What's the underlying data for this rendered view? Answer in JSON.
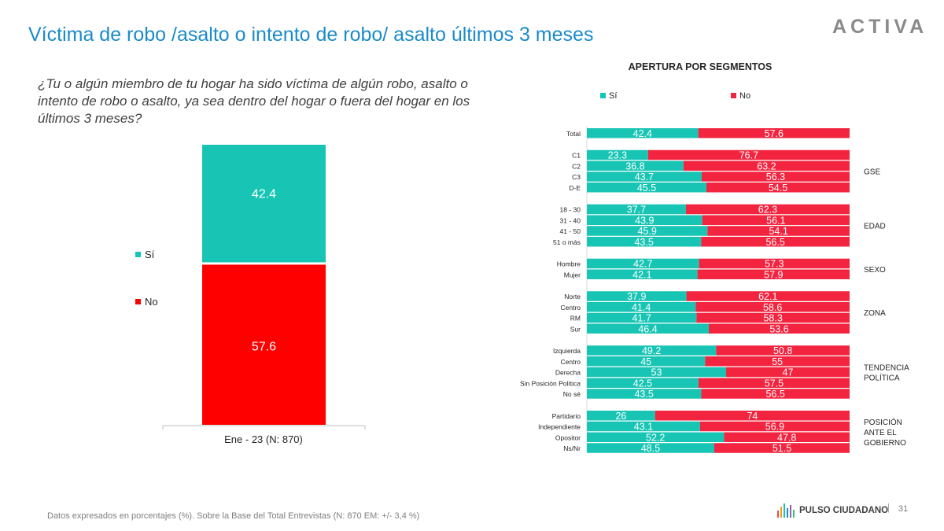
{
  "header": {
    "title": "Víctima de robo /asalto o intento de robo/ asalto últimos 3 meses",
    "logo": "ACTIVA"
  },
  "question": "¿Tu o algún miembro de tu hogar ha sido víctima de algún robo, asalto o intento de robo o asalto, ya sea dentro del hogar o fuera del hogar en los últimos 3 meses?",
  "colors": {
    "si": "#18c5b4",
    "no": "#ff0000",
    "seg_no": "#f2243f",
    "title": "#1b8bc9"
  },
  "chart_data": [
    {
      "type": "bar",
      "stacked": true,
      "categories": [
        "Ene - 23 (N: 870)"
      ],
      "series": [
        {
          "name": "Sí",
          "values": [
            42.4
          ]
        },
        {
          "name": "No",
          "values": [
            57.6
          ]
        }
      ],
      "legend_position": "left",
      "ylim": [
        0,
        100
      ]
    },
    {
      "type": "bar",
      "orientation": "horizontal",
      "stacked": true,
      "title": "APERTURA POR SEGMENTOS",
      "legend_position": "top",
      "series_names": [
        "Sí",
        "No"
      ],
      "groups": [
        {
          "label": "",
          "rows": [
            {
              "label": "Total",
              "si": 42.4,
              "no": 57.6
            }
          ]
        },
        {
          "label": "GSE",
          "rows": [
            {
              "label": "C1",
              "si": 23.3,
              "no": 76.7
            },
            {
              "label": "C2",
              "si": 36.8,
              "no": 63.2
            },
            {
              "label": "C3",
              "si": 43.7,
              "no": 56.3
            },
            {
              "label": "D-E",
              "si": 45.5,
              "no": 54.5
            }
          ]
        },
        {
          "label": "EDAD",
          "rows": [
            {
              "label": "18 - 30",
              "si": 37.7,
              "no": 62.3
            },
            {
              "label": "31 - 40",
              "si": 43.9,
              "no": 56.1
            },
            {
              "label": "41 - 50",
              "si": 45.9,
              "no": 54.1
            },
            {
              "label": "51 o más",
              "si": 43.5,
              "no": 56.5
            }
          ]
        },
        {
          "label": "SEXO",
          "rows": [
            {
              "label": "Hombre",
              "si": 42.7,
              "no": 57.3
            },
            {
              "label": "Mujer",
              "si": 42.1,
              "no": 57.9
            }
          ]
        },
        {
          "label": "ZONA",
          "rows": [
            {
              "label": "Norte",
              "si": 37.9,
              "no": 62.1
            },
            {
              "label": "Centro",
              "si": 41.4,
              "no": 58.6
            },
            {
              "label": "RM",
              "si": 41.7,
              "no": 58.3
            },
            {
              "label": "Sur",
              "si": 46.4,
              "no": 53.6
            }
          ]
        },
        {
          "label": "TENDENCIA\nPOLÍTICA",
          "rows": [
            {
              "label": "Izquierda",
              "si": 49.2,
              "no": 50.8
            },
            {
              "label": "Centro",
              "si": 45,
              "no": 55
            },
            {
              "label": "Derecha",
              "si": 53,
              "no": 47
            },
            {
              "label": "Sin Posición Política",
              "si": 42.5,
              "no": 57.5
            },
            {
              "label": "No sé",
              "si": 43.5,
              "no": 56.5
            }
          ]
        },
        {
          "label": "POSICIÓN\nANTE EL\nGOBIERNO",
          "rows": [
            {
              "label": "Partidario",
              "si": 26,
              "no": 74
            },
            {
              "label": "Independiente",
              "si": 43.1,
              "no": 56.9
            },
            {
              "label": "Opositor",
              "si": 52.2,
              "no": 47.8
            },
            {
              "label": "Ns/Nr",
              "si": 48.5,
              "no": 51.5
            }
          ]
        }
      ]
    }
  ],
  "footer": {
    "note": "Datos expresados en porcentajes (%). Sobre la Base del Total Entrevistas (N: 870  EM: +/- 3,4 %)",
    "brand": "PULSO CIUDADANO",
    "separator": "|",
    "page": "31"
  }
}
